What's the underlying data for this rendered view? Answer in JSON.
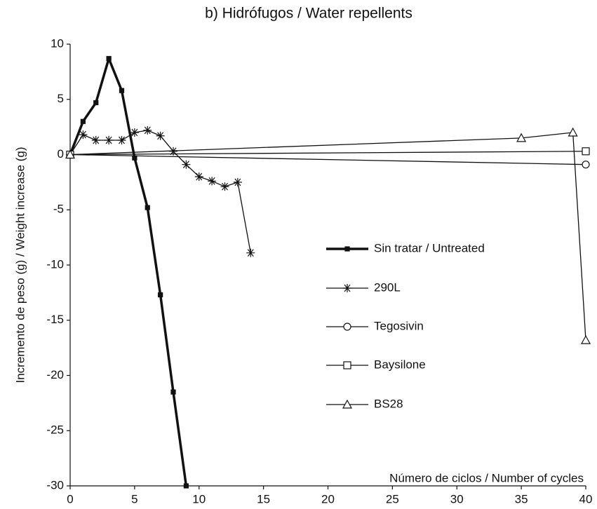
{
  "chart_data": {
    "type": "line",
    "title": "b) Hidrófugos / Water repellents",
    "x_label": "Número de ciclos / Number of cycles",
    "y_label": "Incremento de peso (g)  /  Weight increase (g)",
    "xlim": [
      0,
      40
    ],
    "xticks": [
      0,
      5,
      10,
      15,
      20,
      25,
      30,
      35,
      40
    ],
    "ylim": [
      -30,
      10
    ],
    "yticks": [
      10,
      5,
      0,
      -5,
      -10,
      -15,
      -20,
      -25,
      -30
    ],
    "grid": false,
    "series": [
      {
        "name": "Sin tratar / Untreated",
        "color": "#111111",
        "marker": "filled-square",
        "line_width": 3.5,
        "x": [
          0,
          1,
          2,
          3,
          4,
          5,
          6,
          7,
          8,
          9
        ],
        "values": [
          0,
          3,
          4.7,
          8.7,
          5.8,
          -0.3,
          -4.8,
          -12.7,
          -21.5,
          -30
        ]
      },
      {
        "name": "290L",
        "color": "#111111",
        "marker": "asterisk",
        "line_width": 1.3,
        "x": [
          0,
          1,
          2,
          3,
          4,
          5,
          6,
          7,
          8,
          9,
          10,
          11,
          12,
          13,
          14
        ],
        "values": [
          0,
          1.8,
          1.3,
          1.3,
          1.3,
          2,
          2.2,
          1.7,
          0.3,
          -0.9,
          -2,
          -2.4,
          -2.9,
          -2.5,
          -8.9
        ]
      },
      {
        "name": "Tegosivin",
        "color": "#111111",
        "marker": "circle",
        "line_width": 1.3,
        "x": [
          0,
          40
        ],
        "values": [
          0,
          -0.9
        ]
      },
      {
        "name": "Baysilone",
        "color": "#111111",
        "marker": "square",
        "line_width": 1.3,
        "x": [
          0,
          40
        ],
        "values": [
          0,
          0.3
        ]
      },
      {
        "name": "BS28",
        "color": "#111111",
        "marker": "triangle",
        "line_width": 1.3,
        "x": [
          0,
          35,
          39,
          40
        ],
        "values": [
          0,
          1.5,
          2,
          -16.8
        ]
      }
    ]
  }
}
